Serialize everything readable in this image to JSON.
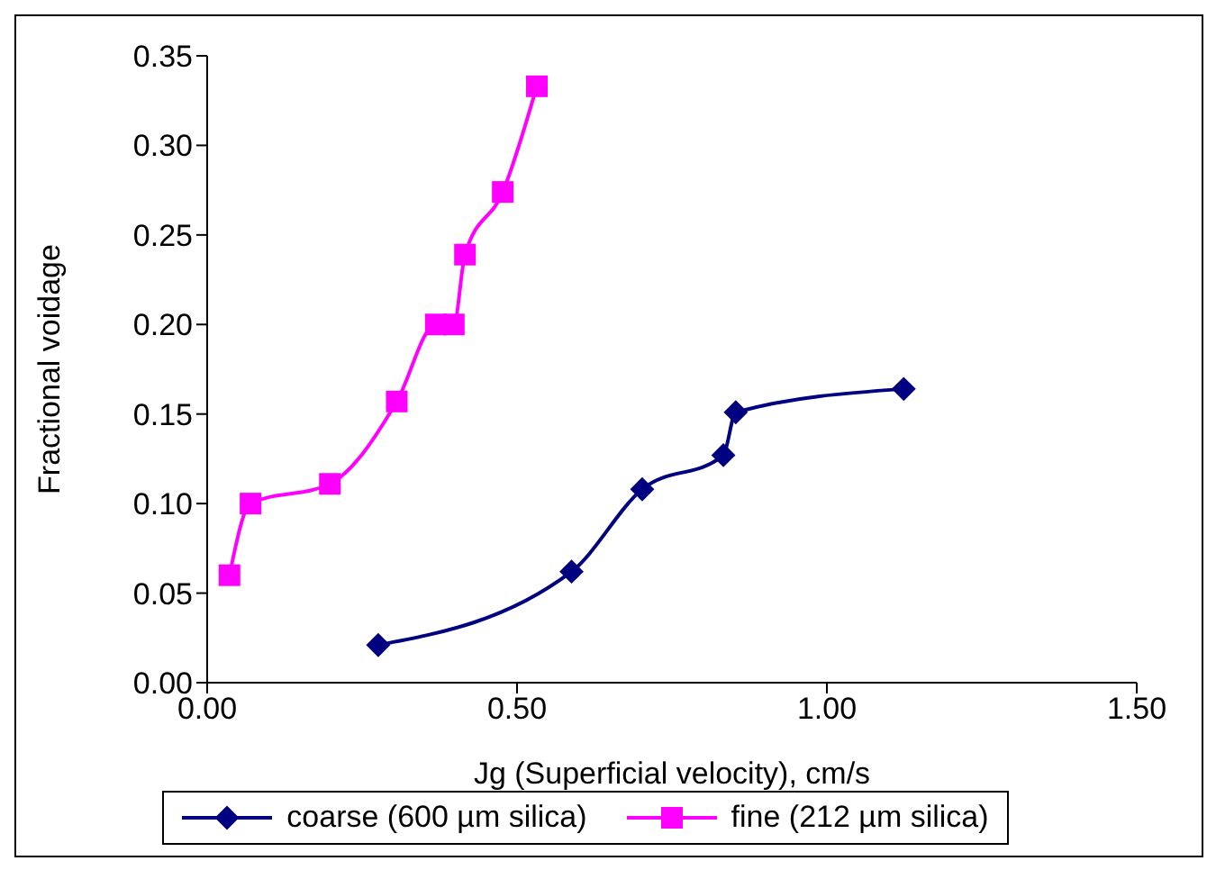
{
  "chart_data": {
    "type": "line",
    "xlabel": "Jg (Superficial  velocity), cm/s",
    "ylabel": "Fractional voidage",
    "xlim": [
      0,
      1.5
    ],
    "xticks": [
      {
        "value": 0,
        "label": "0.00"
      },
      {
        "value": 0.5,
        "label": "0.50"
      },
      {
        "value": 1,
        "label": "1.00"
      },
      {
        "value": 1.5,
        "label": "1.50"
      }
    ],
    "ylim": [
      0,
      0.35
    ],
    "yticks": [
      {
        "value": 0,
        "label": "0.00"
      },
      {
        "value": 0.05,
        "label": "0.05"
      },
      {
        "value": 0.1,
        "label": "0.10"
      },
      {
        "value": 0.15,
        "label": "0.15"
      },
      {
        "value": 0.2,
        "label": "0.20"
      },
      {
        "value": 0.25,
        "label": "0.25"
      },
      {
        "value": 0.3,
        "label": "0.30"
      },
      {
        "value": 0.35,
        "label": "0.35"
      }
    ],
    "grid": false,
    "legend": "bottom",
    "line_style": "solid",
    "series": [
      {
        "name": "coarse (600 µm silica)",
        "color": "#000080",
        "marker": "diamond",
        "x": [
          0.276,
          0.588,
          0.702,
          0.833,
          0.853,
          1.124
        ],
        "values": [
          0.021,
          0.062,
          0.108,
          0.127,
          0.151,
          0.164
        ]
      },
      {
        "name": "fine (212 µm silica)",
        "color": "#ff00ff",
        "marker": "square",
        "x": [
          0.036,
          0.07,
          0.198,
          0.306,
          0.369,
          0.398,
          0.416,
          0.477,
          0.532
        ],
        "values": [
          0.06,
          0.1,
          0.111,
          0.157,
          0.2,
          0.2,
          0.239,
          0.274,
          0.333
        ]
      }
    ]
  }
}
